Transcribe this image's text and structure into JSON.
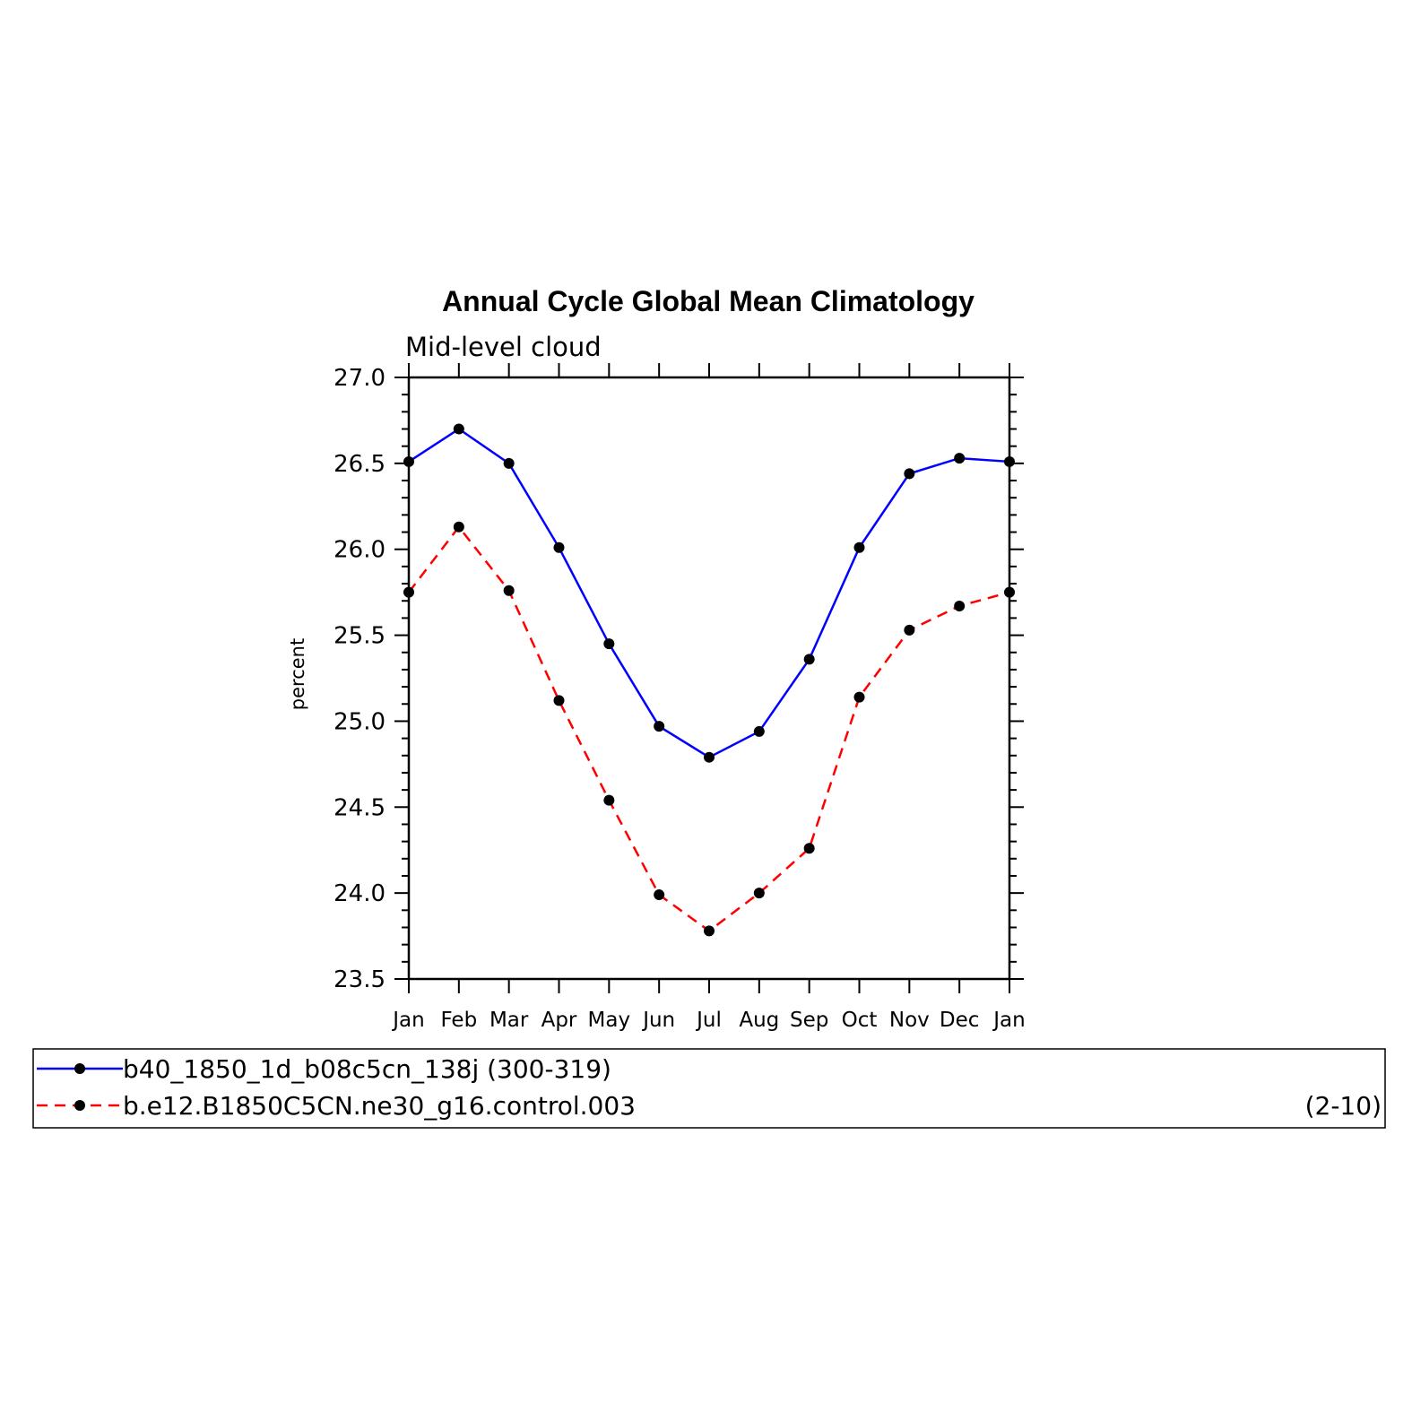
{
  "chart_data": {
    "type": "line",
    "title": "Annual Cycle Global Mean Climatology",
    "subtitle": "Mid-level cloud",
    "ylabel": "percent",
    "ylim": [
      23.5,
      27.0
    ],
    "yticks": [
      "27.0",
      "26.5",
      "26.0",
      "25.5",
      "25.0",
      "24.5",
      "24.0",
      "23.5"
    ],
    "categories": [
      "Jan",
      "Feb",
      "Mar",
      "Apr",
      "May",
      "Jun",
      "Jul",
      "Aug",
      "Sep",
      "Oct",
      "Nov",
      "Dec",
      "Jan"
    ],
    "series": [
      {
        "name": "b40_1850_1d_b08c5cn_138j (300-319)",
        "color": "#0000ff",
        "dash": "solid",
        "values": [
          26.51,
          26.7,
          26.5,
          26.01,
          25.45,
          24.97,
          24.79,
          24.94,
          25.36,
          26.01,
          26.44,
          26.53,
          26.51
        ]
      },
      {
        "name": "b.e12.B1850C5CN.ne30_g16.control.003",
        "years": "(2-10)",
        "color": "#ff0000",
        "dash": "dashed",
        "values": [
          25.75,
          26.13,
          25.76,
          25.12,
          24.54,
          23.99,
          23.78,
          24.0,
          24.26,
          25.14,
          25.53,
          25.67,
          25.75
        ]
      }
    ],
    "legend_position": "bottom"
  }
}
